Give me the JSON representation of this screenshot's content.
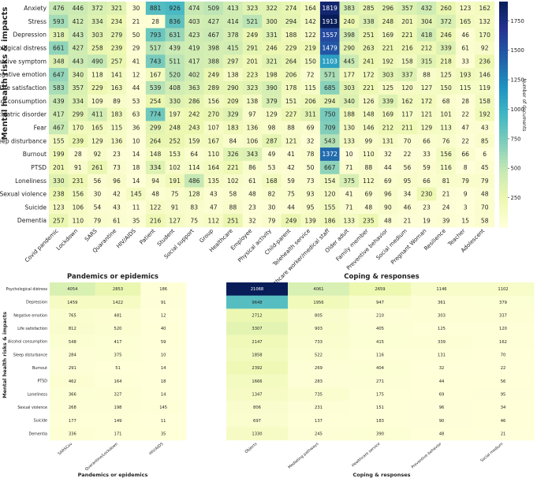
{
  "chart_data": [
    {
      "type": "heatmap",
      "title": "",
      "ylabel": "Mental health risks & impacts",
      "xlabel": "",
      "colorbar": {
        "label": "Number of documents",
        "ticks": [
          250,
          500,
          750,
          1000,
          1250,
          1500,
          1750
        ],
        "range": [
          0,
          1913
        ]
      },
      "rows": [
        "Anxiety",
        "Stress",
        "Depression",
        "Psychological distress",
        "Depressive symptom",
        "Negative emotion",
        "Life satisfaction",
        "Alcohol consumption",
        "Psychiatric disorder",
        "Fear",
        "Sleep disturbance",
        "Burnout",
        "PTSD",
        "Loneliness",
        "Sexual violence",
        "Suicide",
        "Dementia"
      ],
      "columns": [
        "Covid pandemic",
        "Lockdown",
        "SARS",
        "Quarantine",
        "HIV/AIDS",
        "Patient",
        "Student",
        "Social support",
        "Group",
        "Healthcare",
        "Employee",
        "Physical activity",
        "Child-parent",
        "Telehealth service",
        "Healthcare worker/medical staff",
        "Older adult",
        "Family member",
        "Preventive behavior",
        "Social medium",
        "Pregnant Woman",
        "Resilience",
        "Teacher",
        "Adolescent"
      ],
      "values": [
        [
          476,
          446,
          372,
          321,
          30,
          881,
          926,
          474,
          509,
          413,
          323,
          322,
          274,
          164,
          1819,
          383,
          285,
          296,
          357,
          432,
          260,
          123,
          162
        ],
        [
          593,
          412,
          334,
          234,
          21,
          28,
          836,
          403,
          427,
          414,
          521,
          300,
          294,
          142,
          1913,
          240,
          338,
          248,
          201,
          304,
          372,
          165,
          132
        ],
        [
          318,
          443,
          303,
          279,
          50,
          793,
          631,
          423,
          467,
          378,
          249,
          331,
          188,
          122,
          1557,
          398,
          251,
          169,
          221,
          418,
          246,
          46,
          170
        ],
        [
          661,
          427,
          258,
          239,
          29,
          517,
          439,
          419,
          398,
          415,
          291,
          246,
          229,
          219,
          1479,
          290,
          263,
          221,
          216,
          212,
          339,
          61,
          92
        ],
        [
          348,
          443,
          490,
          257,
          41,
          743,
          511,
          417,
          388,
          297,
          201,
          321,
          264,
          150,
          1103,
          445,
          241,
          192,
          158,
          315,
          218,
          33,
          236
        ],
        [
          647,
          340,
          118,
          141,
          12,
          167,
          520,
          402,
          249,
          138,
          223,
          198,
          206,
          72,
          571,
          177,
          172,
          303,
          337,
          88,
          125,
          193,
          146
        ],
        [
          583,
          357,
          229,
          163,
          44,
          539,
          408,
          363,
          289,
          290,
          323,
          390,
          178,
          115,
          685,
          303,
          221,
          125,
          120,
          127,
          150,
          115,
          119
        ],
        [
          439,
          334,
          109,
          89,
          53,
          254,
          330,
          286,
          156,
          209,
          138,
          379,
          151,
          206,
          294,
          340,
          126,
          339,
          162,
          172,
          68,
          28,
          158
        ],
        [
          417,
          299,
          411,
          183,
          63,
          774,
          197,
          242,
          270,
          329,
          97,
          129,
          227,
          311,
          750,
          188,
          148,
          169,
          117,
          121,
          101,
          22,
          192
        ],
        [
          467,
          170,
          165,
          115,
          36,
          299,
          248,
          243,
          107,
          183,
          136,
          98,
          88,
          69,
          709,
          130,
          146,
          212,
          211,
          129,
          113,
          47,
          43
        ],
        [
          155,
          239,
          129,
          136,
          10,
          264,
          252,
          159,
          167,
          84,
          106,
          287,
          121,
          32,
          543,
          133,
          99,
          131,
          70,
          66,
          76,
          22,
          85
        ],
        [
          199,
          28,
          92,
          23,
          14,
          148,
          153,
          64,
          110,
          326,
          343,
          49,
          41,
          78,
          1372,
          10,
          110,
          32,
          22,
          33,
          156,
          66,
          6
        ],
        [
          201,
          91,
          261,
          73,
          18,
          334,
          102,
          114,
          164,
          221,
          86,
          53,
          42,
          50,
          667,
          71,
          88,
          44,
          56,
          59,
          116,
          8,
          45
        ],
        [
          330,
          231,
          56,
          96,
          14,
          94,
          191,
          486,
          135,
          102,
          61,
          168,
          59,
          73,
          154,
          375,
          112,
          69,
          95,
          66,
          81,
          79,
          79
        ],
        [
          238,
          156,
          30,
          42,
          145,
          48,
          75,
          128,
          43,
          58,
          48,
          82,
          75,
          93,
          120,
          41,
          69,
          96,
          34,
          230,
          21,
          9,
          48
        ],
        [
          123,
          106,
          54,
          43,
          11,
          122,
          91,
          83,
          47,
          88,
          23,
          30,
          44,
          95,
          155,
          71,
          48,
          90,
          46,
          23,
          24,
          3,
          70
        ],
        [
          257,
          110,
          79,
          61,
          35,
          216,
          127,
          75,
          112,
          251,
          32,
          79,
          249,
          139,
          186,
          133,
          235,
          48,
          21,
          19,
          39,
          15,
          58
        ]
      ]
    },
    {
      "type": "heatmap",
      "title": "Pandemics or epidemics",
      "xlabel": "Pandemics or epidemics",
      "ylabel": "Mental health risks & impacts",
      "rows": [
        "Psychological distress",
        "Depression",
        "Negative emotion",
        "Life satisfaction",
        "Alcohol consumption",
        "Sleep disturbance",
        "Burnout",
        "PTSD",
        "Loneliness",
        "Sexual violence",
        "Suicide",
        "Dementia"
      ],
      "columns": [
        "SARSCov",
        "Quarantine/Lockdown",
        "HIV/AIDS"
      ],
      "values": [
        [
          4054,
          2853,
          186
        ],
        [
          1459,
          1422,
          91
        ],
        [
          765,
          481,
          12
        ],
        [
          812,
          520,
          40
        ],
        [
          548,
          417,
          59
        ],
        [
          284,
          375,
          10
        ],
        [
          291,
          51,
          14
        ],
        [
          462,
          164,
          18
        ],
        [
          366,
          327,
          14
        ],
        [
          268,
          198,
          145
        ],
        [
          177,
          149,
          11
        ],
        [
          336,
          171,
          35
        ]
      ]
    },
    {
      "type": "heatmap",
      "title": "Coping & responses",
      "xlabel": "Coping & responses",
      "columns": [
        "Objects",
        "Mediating pathways",
        "Healthcare service",
        "Preventive behavior",
        "Social medium"
      ],
      "values": [
        [
          21068,
          4061,
          2659,
          1146,
          1102
        ],
        [
          9648,
          1956,
          947,
          361,
          379
        ],
        [
          2712,
          805,
          210,
          303,
          337
        ],
        [
          3307,
          903,
          405,
          125,
          120
        ],
        [
          2147,
          733,
          415,
          339,
          162
        ],
        [
          1858,
          522,
          116,
          131,
          70
        ],
        [
          2392,
          269,
          404,
          32,
          22
        ],
        [
          1666,
          283,
          271,
          44,
          56
        ],
        [
          1347,
          735,
          175,
          69,
          95
        ],
        [
          806,
          231,
          151,
          96,
          34
        ],
        [
          697,
          137,
          183,
          90,
          46
        ],
        [
          1330,
          245,
          390,
          48,
          21
        ]
      ]
    }
  ]
}
